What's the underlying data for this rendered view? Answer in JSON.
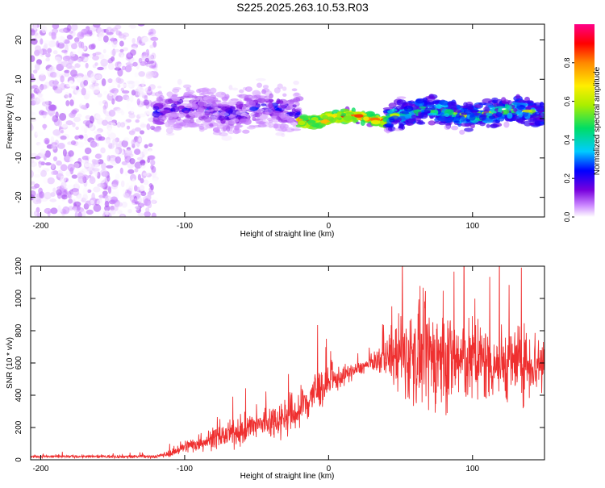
{
  "title": "S225.2025.263.10.53.R03",
  "colors": {
    "snr_line": "#ef3030",
    "background": "#ffffff",
    "axis": "#000000"
  },
  "chart_data": [
    {
      "type": "heatmap",
      "name": "spectrogram",
      "xlabel": "Height of straight line (km)",
      "ylabel": "Frequency (Hz)",
      "xlim": [
        -207,
        150
      ],
      "ylim": [
        -25,
        24
      ],
      "xticks": [
        -200,
        -100,
        0,
        100
      ],
      "yticks": [
        -20,
        -10,
        0,
        10,
        20
      ],
      "colorbar": {
        "label": "Normalized spectral amplitude",
        "range": [
          0,
          1
        ],
        "ticks": [
          0.0,
          0.2,
          0.4,
          0.6,
          0.8
        ],
        "colormap": [
          "#ffffff",
          "#cc88ff",
          "#7700dd",
          "#0000ff",
          "#00ccff",
          "#00dd66",
          "#aaee00",
          "#ffee00",
          "#ff8800",
          "#ff0000",
          "#ff0088"
        ]
      },
      "regions": [
        {
          "from_km": -207,
          "to_km": -120,
          "description": "noise",
          "freq_range": [
            -25,
            24
          ],
          "amplitude_level": [
            0.0,
            0.15
          ]
        },
        {
          "from_km": -120,
          "to_km": -20,
          "freq_center": 2,
          "freq_spread": 5,
          "amplitude_level": [
            0.05,
            0.35
          ]
        },
        {
          "from_km": -20,
          "to_km": 40,
          "freq_center": 0,
          "freq_spread": 1.2,
          "amplitude_level": [
            0.5,
            0.95
          ]
        },
        {
          "from_km": 40,
          "to_km": 150,
          "freq_center": 1.5,
          "freq_spread": 3,
          "amplitude_level": [
            0.2,
            0.7
          ]
        }
      ]
    },
    {
      "type": "line",
      "name": "snr",
      "xlabel": "Height of straight line (km)",
      "ylabel": "SNR (10 * v/v)",
      "xlim": [
        -207,
        150
      ],
      "ylim": [
        0,
        1200
      ],
      "xticks": [
        -200,
        -100,
        0,
        100
      ],
      "yticks": [
        0,
        200,
        400,
        600,
        800,
        1000,
        1200
      ],
      "envelope": {
        "x": [
          -207,
          -120,
          -110,
          -100,
          -80,
          -60,
          -40,
          -20,
          -10,
          0,
          10,
          20,
          30,
          40,
          50,
          60,
          80,
          100,
          120,
          150
        ],
        "mean": [
          20,
          20,
          40,
          80,
          130,
          180,
          240,
          300,
          420,
          470,
          520,
          560,
          600,
          640,
          650,
          650,
          630,
          610,
          600,
          600
        ],
        "spread": [
          8,
          10,
          20,
          40,
          60,
          80,
          100,
          130,
          140,
          90,
          60,
          40,
          40,
          120,
          250,
          300,
          300,
          250,
          220,
          200
        ]
      }
    }
  ]
}
